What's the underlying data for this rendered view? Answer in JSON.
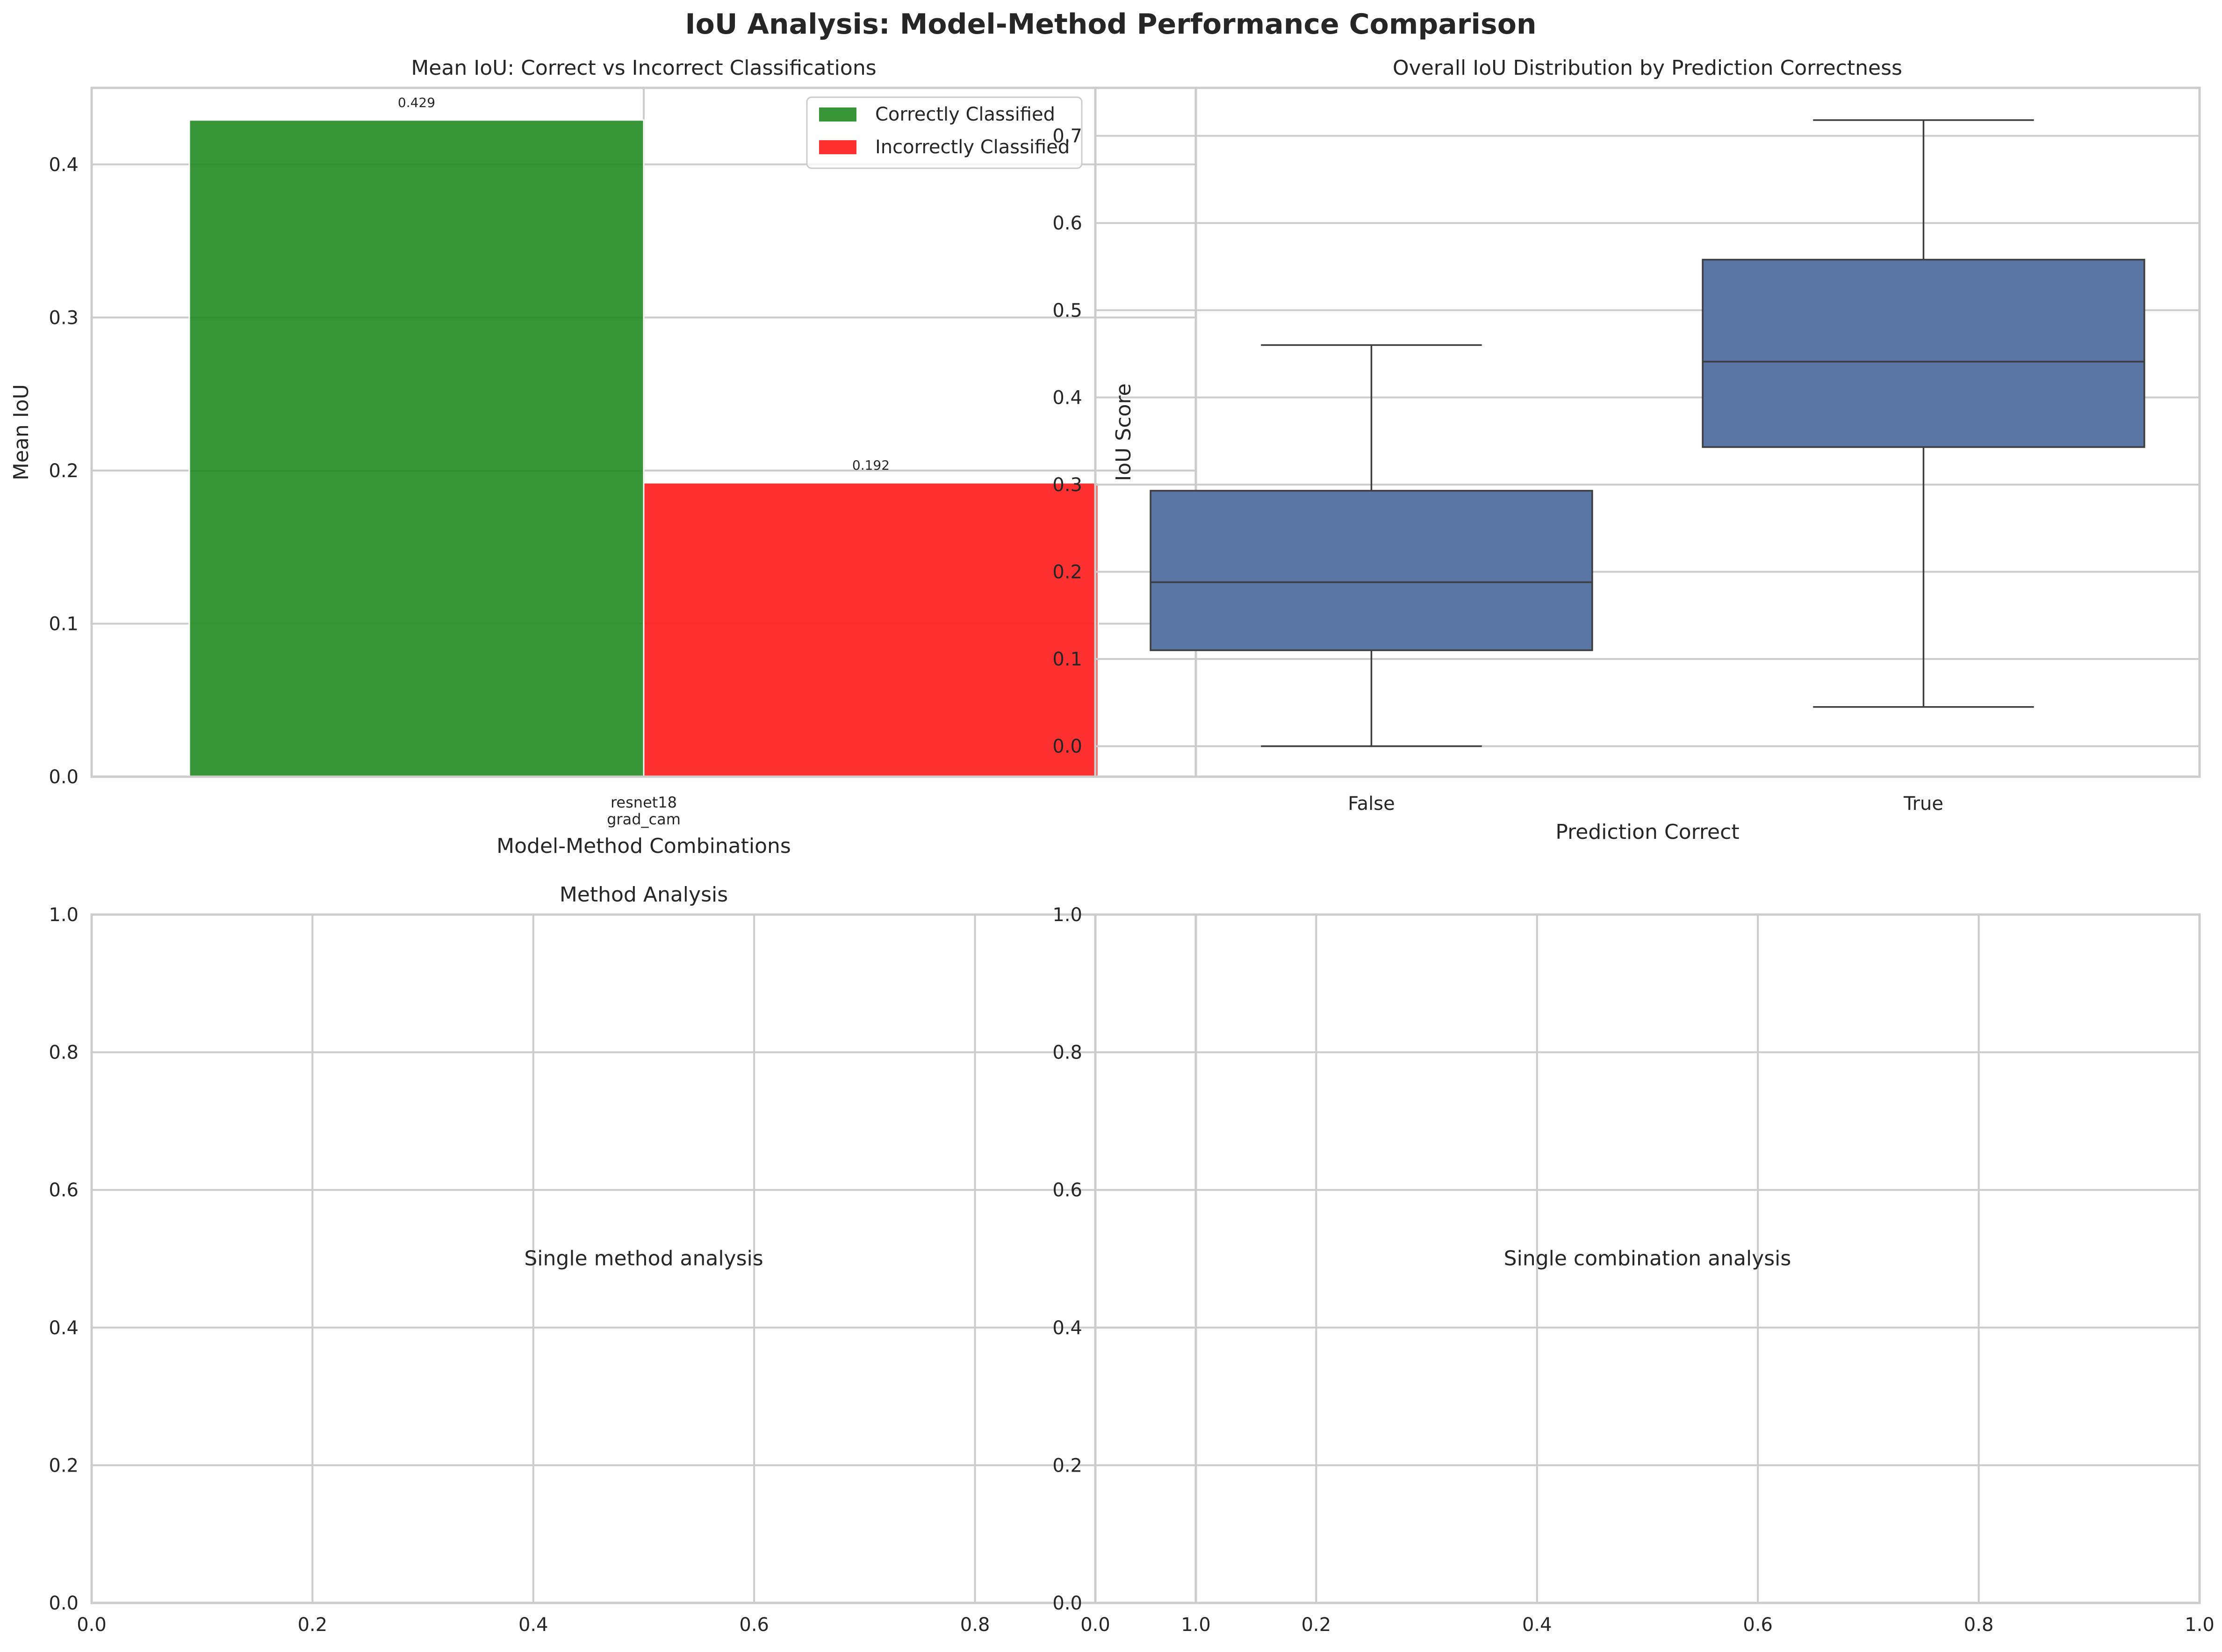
{
  "figure": {
    "suptitle": "IoU Analysis: Model-Method Performance Comparison"
  },
  "colors": {
    "correct": "#228B22",
    "incorrect": "#FF1A1A",
    "box": "#5875a4",
    "grid": "#cccccc",
    "frame": "#cccccc",
    "text": "#262626"
  },
  "chart_data": [
    {
      "type": "bar",
      "title": "Mean IoU: Correct vs Incorrect Classifications",
      "xlabel": "Model-Method Combinations",
      "ylabel": "Mean IoU",
      "categories": [
        "resnet18\ngrad_cam"
      ],
      "category_lines": [
        "resnet18",
        "grad_cam"
      ],
      "series": [
        {
          "name": "Correctly Classified",
          "values": [
            0.429
          ],
          "color": "#228B22",
          "label": "0.429"
        },
        {
          "name": "Incorrectly Classified",
          "values": [
            0.192
          ],
          "color": "#FF1A1A",
          "label": "0.192"
        }
      ],
      "ylim": [
        0,
        0.45
      ],
      "yticks": [
        0.0,
        0.1,
        0.2,
        0.3,
        0.4
      ],
      "ytick_labels": [
        "0.0",
        "0.1",
        "0.2",
        "0.3",
        "0.4"
      ],
      "legend": "top-right",
      "grid": true
    },
    {
      "type": "box",
      "title": "Overall IoU Distribution by Prediction Correctness",
      "xlabel": "Prediction Correct",
      "ylabel": "IoU Score",
      "categories": [
        "False",
        "True"
      ],
      "boxes": [
        {
          "category": "False",
          "whisker_low": 0.0,
          "q1": 0.11,
          "median": 0.188,
          "q3": 0.293,
          "whisker_high": 0.46
        },
        {
          "category": "True",
          "whisker_low": 0.045,
          "q1": 0.343,
          "median": 0.441,
          "q3": 0.558,
          "whisker_high": 0.718
        }
      ],
      "ylim": [
        -0.035,
        0.755
      ],
      "yticks": [
        0.0,
        0.1,
        0.2,
        0.3,
        0.4,
        0.5,
        0.6,
        0.7
      ],
      "ytick_labels": [
        "0.0",
        "0.1",
        "0.2",
        "0.3",
        "0.4",
        "0.5",
        "0.6",
        "0.7"
      ],
      "grid": true
    },
    {
      "type": "empty",
      "title": "Method Analysis",
      "annotation": "Single method analysis",
      "xlim": [
        0,
        1
      ],
      "ylim": [
        0,
        1
      ],
      "xticks": [
        0.0,
        0.2,
        0.4,
        0.6,
        0.8,
        1.0
      ],
      "xtick_labels": [
        "0.0",
        "0.2",
        "0.4",
        "0.6",
        "0.8",
        "1.0"
      ],
      "yticks": [
        0.0,
        0.2,
        0.4,
        0.6,
        0.8,
        1.0
      ],
      "ytick_labels": [
        "0.0",
        "0.2",
        "0.4",
        "0.6",
        "0.8",
        "1.0"
      ],
      "grid": true
    },
    {
      "type": "empty",
      "title": "",
      "annotation": "Single combination analysis",
      "xlim": [
        0,
        1
      ],
      "ylim": [
        0,
        1
      ],
      "xticks": [
        0.0,
        0.2,
        0.4,
        0.6,
        0.8,
        1.0
      ],
      "xtick_labels": [
        "0.0",
        "0.2",
        "0.4",
        "0.6",
        "0.8",
        "1.0"
      ],
      "yticks": [
        0.0,
        0.2,
        0.4,
        0.6,
        0.8,
        1.0
      ],
      "ytick_labels": [
        "0.0",
        "0.2",
        "0.4",
        "0.6",
        "0.8",
        "1.0"
      ],
      "grid": true
    }
  ]
}
